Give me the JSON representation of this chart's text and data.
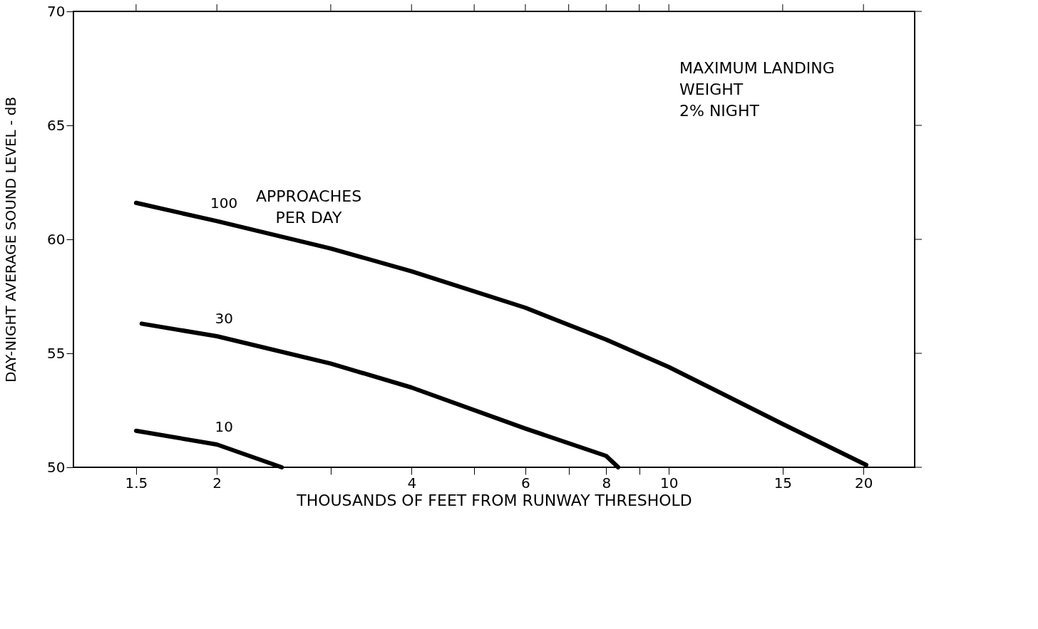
{
  "chart_data": {
    "type": "line",
    "xlabel": "THOUSANDS OF FEET FROM RUNWAY THRESHOLD",
    "ylabel": "DAY-NIGHT AVERAGE SOUND LEVEL - dB",
    "log": "x",
    "xlim": [
      1.2,
      24
    ],
    "ylim": [
      50,
      70
    ],
    "xticks": [
      1.5,
      2,
      {
        "value": 3,
        "label": null
      },
      4,
      {
        "value": 5,
        "label": null
      },
      6,
      {
        "value": 7,
        "label": null
      },
      8,
      {
        "value": 9,
        "label": null
      },
      10,
      15,
      20
    ],
    "yticks": [
      50,
      55,
      60,
      65,
      70
    ],
    "grid": false,
    "legend": false,
    "marker": "none",
    "line_style": "solid",
    "annotations": [
      "APPROACHES\nPER DAY",
      "MAXIMUM LANDING\nWEIGHT\n2% NIGHT"
    ],
    "series": [
      {
        "name": "100",
        "color": "#000000",
        "x": [
          1.5,
          2,
          3,
          4,
          6,
          8,
          10,
          15,
          20.2
        ],
        "values": [
          61.6,
          60.8,
          59.6,
          58.6,
          57.0,
          55.6,
          54.4,
          51.9,
          50.1
        ]
      },
      {
        "name": "30",
        "color": "#000000",
        "x": [
          1.53,
          2,
          3,
          4,
          6,
          8,
          8.35
        ],
        "values": [
          56.3,
          55.75,
          54.55,
          53.5,
          51.7,
          50.5,
          50.0
        ]
      },
      {
        "name": "10",
        "color": "#000000",
        "x": [
          1.5,
          2,
          2.52
        ],
        "values": [
          51.6,
          51.0,
          50.0
        ]
      }
    ]
  }
}
